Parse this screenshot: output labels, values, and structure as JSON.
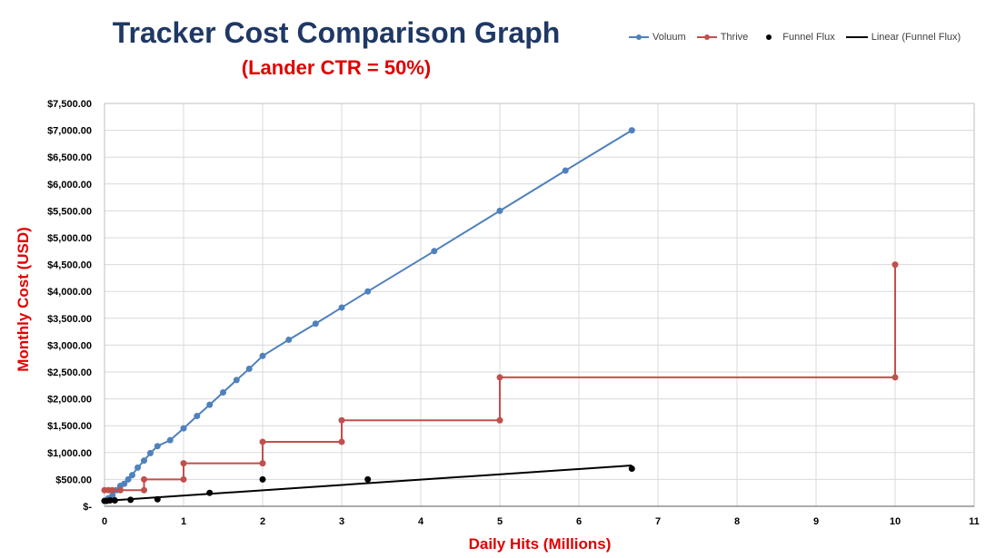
{
  "chart_data": {
    "type": "line",
    "title": "Tracker Cost Comparison Graph",
    "subtitle": "(Lander CTR = 50%)",
    "xlabel": "Daily Hits (Millions)",
    "ylabel": "Monthly Cost (USD)",
    "xlim": [
      0,
      11
    ],
    "ylim": [
      0,
      7500
    ],
    "x_ticks": [
      0,
      1,
      2,
      3,
      4,
      5,
      6,
      7,
      8,
      9,
      10,
      11
    ],
    "y_ticks": [
      0,
      500,
      1000,
      1500,
      2000,
      2500,
      3000,
      3500,
      4000,
      4500,
      5000,
      5500,
      6000,
      6500,
      7000,
      7500
    ],
    "y_tick_labels": [
      "$-",
      "$500.00",
      "$1,000.00",
      "$1,500.00",
      "$2,000.00",
      "$2,500.00",
      "$3,000.00",
      "$3,500.00",
      "$4,000.00",
      "$4,500.00",
      "$5,000.00",
      "$5,500.00",
      "$6,000.00",
      "$6,500.00",
      "$7,000.00",
      "$7,500.00"
    ],
    "grid": true,
    "legend_position": "top-right",
    "series": [
      {
        "name": "Voluum",
        "color": "#4f81bd",
        "style": "line-markers",
        "points": [
          [
            0,
            100
          ],
          [
            0.05,
            150
          ],
          [
            0.1,
            200
          ],
          [
            0.15,
            300
          ],
          [
            0.2,
            380
          ],
          [
            0.25,
            420
          ],
          [
            0.3,
            500
          ],
          [
            0.35,
            580
          ],
          [
            0.42,
            720
          ],
          [
            0.5,
            850
          ],
          [
            0.58,
            990
          ],
          [
            0.67,
            1120
          ],
          [
            0.83,
            1230
          ],
          [
            1.0,
            1450
          ],
          [
            1.17,
            1680
          ],
          [
            1.33,
            1890
          ],
          [
            1.5,
            2120
          ],
          [
            1.67,
            2350
          ],
          [
            1.83,
            2560
          ],
          [
            2.0,
            2800
          ],
          [
            2.33,
            3100
          ],
          [
            2.67,
            3400
          ],
          [
            3.0,
            3700
          ],
          [
            3.33,
            4000
          ],
          [
            4.17,
            4750
          ],
          [
            5.0,
            5500
          ],
          [
            5.83,
            6250
          ],
          [
            6.67,
            7000
          ]
        ]
      },
      {
        "name": "Thrive",
        "color": "#c0504d",
        "style": "step-markers",
        "points": [
          [
            0,
            300
          ],
          [
            0.05,
            300
          ],
          [
            0.1,
            300
          ],
          [
            0.2,
            300
          ],
          [
            0.5,
            300
          ],
          [
            0.5,
            500
          ],
          [
            1,
            500
          ],
          [
            1,
            800
          ],
          [
            2,
            800
          ],
          [
            2,
            1200
          ],
          [
            3,
            1200
          ],
          [
            3,
            1600
          ],
          [
            5,
            1600
          ],
          [
            5,
            2400
          ],
          [
            10,
            2400
          ],
          [
            10,
            4500
          ]
        ]
      },
      {
        "name": "Funnel Flux",
        "color": "#000000",
        "style": "markers",
        "points": [
          [
            0,
            100
          ],
          [
            0.03,
            100
          ],
          [
            0.07,
            110
          ],
          [
            0.13,
            110
          ],
          [
            0.33,
            120
          ],
          [
            0.67,
            130
          ],
          [
            1.33,
            250
          ],
          [
            2.0,
            500
          ],
          [
            3.33,
            500
          ],
          [
            6.67,
            700
          ]
        ]
      },
      {
        "name": "Linear (Funnel Flux)",
        "color": "#000000",
        "style": "trendline",
        "points": [
          [
            0,
            100
          ],
          [
            6.67,
            760
          ]
        ]
      }
    ]
  }
}
